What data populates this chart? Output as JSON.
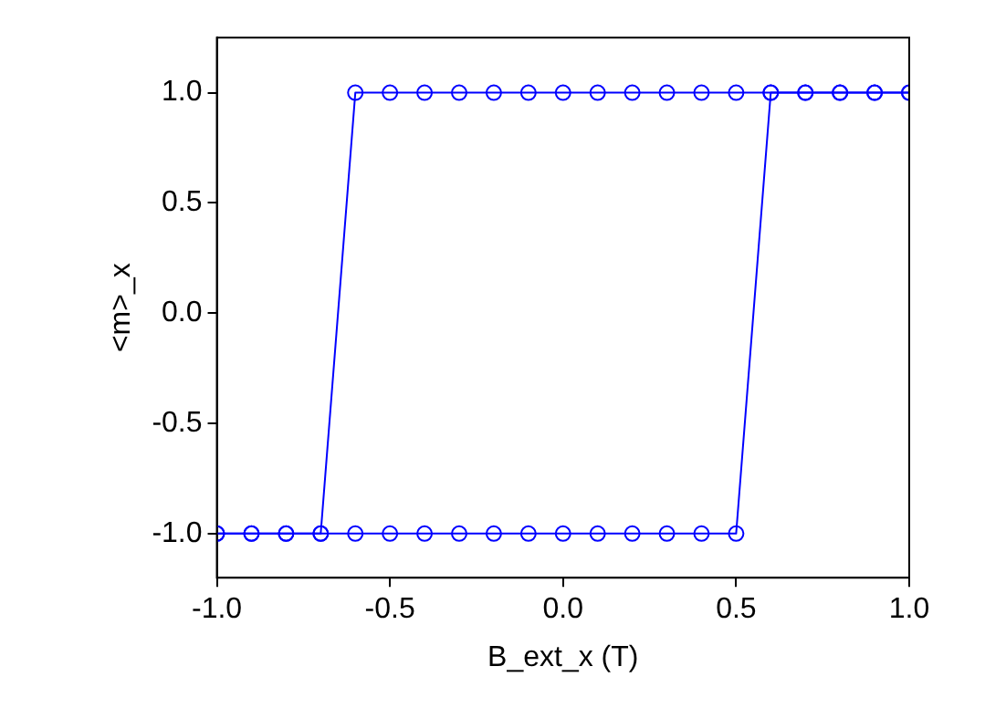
{
  "chart_data": {
    "type": "line",
    "xlabel": "B_ext_x (T)",
    "ylabel": "<m>_x",
    "x": [
      -1.0,
      -0.9,
      -0.8,
      -0.7,
      -0.6,
      -0.5,
      -0.4,
      -0.3,
      -0.2,
      -0.1,
      0.0,
      0.1,
      0.2,
      0.3,
      0.4,
      0.5,
      0.6,
      0.7,
      0.8,
      0.9,
      1.0
    ],
    "series": [
      {
        "color": "#0000ff",
        "values": [
          -1,
          -1,
          -1,
          -1,
          1,
          1,
          1,
          1,
          1,
          1,
          1,
          1,
          1,
          1,
          1,
          1,
          1,
          1,
          1,
          1,
          1
        ]
      },
      {
        "color": "#0000ff",
        "values": [
          -1,
          -1,
          -1,
          -1,
          -1,
          -1,
          -1,
          -1,
          -1,
          -1,
          -1,
          -1,
          -1,
          -1,
          -1,
          -1,
          1,
          1,
          1,
          1,
          1
        ]
      }
    ],
    "xlim": [
      -1.0,
      1.0
    ],
    "xticks": [
      {
        "value": -1,
        "label": "-1.0"
      },
      {
        "value": -0.5,
        "label": "-0.5"
      },
      {
        "value": 0,
        "label": "0.0"
      },
      {
        "value": 0.5,
        "label": "0.5"
      },
      {
        "value": 1,
        "label": "1.0"
      }
    ],
    "ylim": [
      -1.2,
      1.25
    ],
    "yticks": [
      {
        "value": -1,
        "label": "-1.0"
      },
      {
        "value": -0.5,
        "label": "-0.5"
      },
      {
        "value": 0,
        "label": "0.0"
      },
      {
        "value": 0.5,
        "label": "0.5"
      },
      {
        "value": 1,
        "label": "1.0"
      }
    ],
    "marker": "circle",
    "line_style": "solid",
    "grid": false,
    "legend": false
  }
}
